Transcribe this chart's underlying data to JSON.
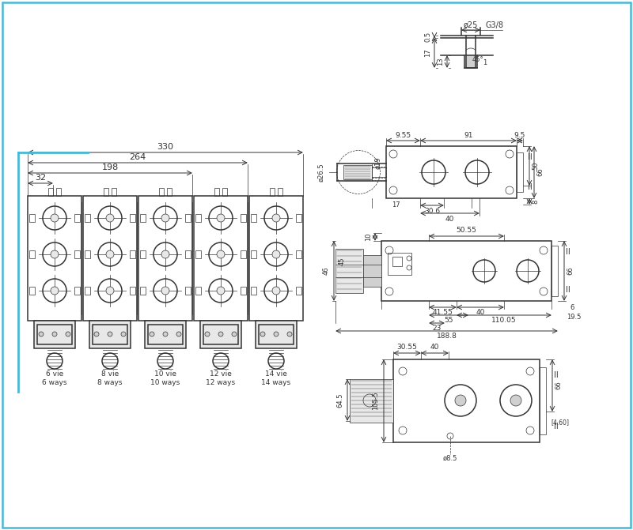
{
  "bg": "#ffffff",
  "dc": "#333333",
  "bc": "#4ab8d4",
  "gray1": "#c8c8c8",
  "gray2": "#e8e8e8",
  "gray3": "#d0d0d0",
  "fig_w": 8.0,
  "fig_h": 6.71,
  "ways": [
    "6 vie\n6 ways",
    "8 vie\n8 ways",
    "10 vie\n10 ways",
    "12 vie\n12 ways",
    "14 vie\n14 ways"
  ],
  "lw_main": 1.1,
  "lw_dim": 0.7,
  "lw_thin": 0.5,
  "fs_dim": 6.5,
  "fs_small": 6.0
}
